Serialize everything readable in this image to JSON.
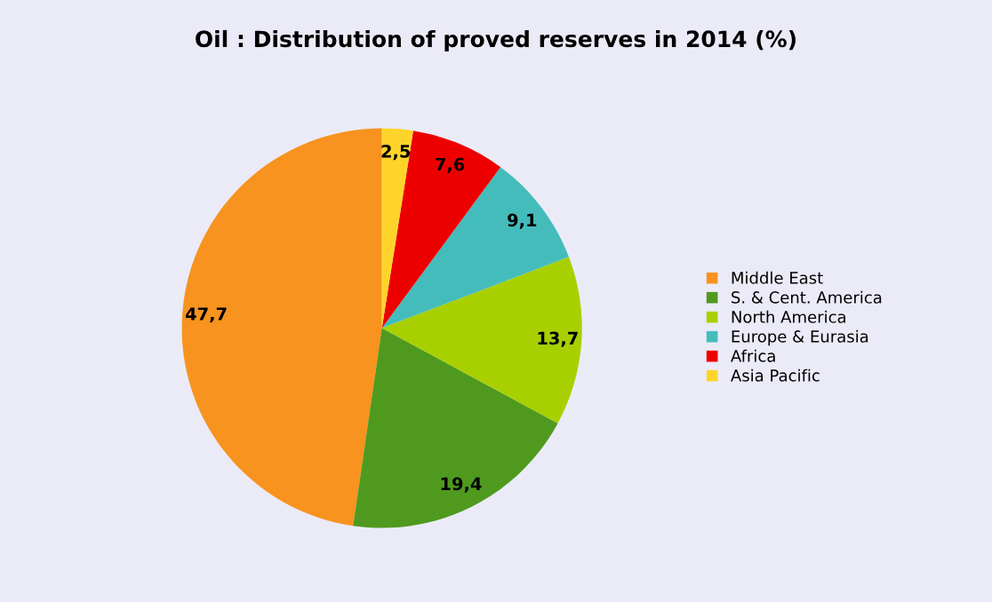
{
  "chart_data": {
    "type": "pie",
    "title": "Oil : Distribution of proved reserves in 2014 (%)",
    "categories": [
      "Middle East",
      "S. & Cent. America",
      "North America",
      "Europe & Eurasia",
      "Africa",
      "Asia Pacific"
    ],
    "values": [
      47.7,
      19.4,
      13.7,
      9.1,
      7.6,
      2.5
    ],
    "value_labels": [
      "47,7",
      "19,4",
      "13,7",
      "9,1",
      "7,6",
      "2,5"
    ],
    "colors": [
      "#f7931e",
      "#4f9a1e",
      "#a8d000",
      "#45bcbc",
      "#ee0000",
      "#ffd42a"
    ],
    "legend": "right"
  }
}
